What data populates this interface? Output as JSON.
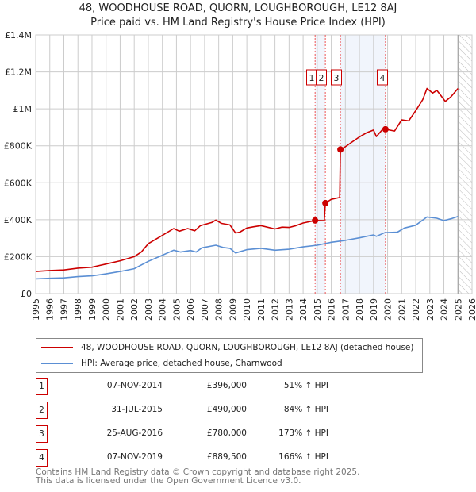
{
  "chart_data": {
    "type": "line",
    "title": "48, WOODHOUSE ROAD, QUORN, LOUGHBOROUGH, LE12 8AJ",
    "subtitle": "Price paid vs. HM Land Registry's House Price Index (HPI)",
    "xlim": [
      1995,
      2026
    ],
    "ylim": [
      0,
      1400000
    ],
    "grid": true,
    "y_ticks": [
      {
        "v": 0,
        "label": "£0"
      },
      {
        "v": 200000,
        "label": "£200K"
      },
      {
        "v": 400000,
        "label": "£400K"
      },
      {
        "v": 600000,
        "label": "£600K"
      },
      {
        "v": 800000,
        "label": "£800K"
      },
      {
        "v": 1000000,
        "label": "£1M"
      },
      {
        "v": 1200000,
        "label": "£1.2M"
      },
      {
        "v": 1400000,
        "label": "£1.4M"
      }
    ],
    "x_ticks": [
      "1995",
      "1996",
      "1997",
      "1998",
      "1999",
      "2000",
      "2001",
      "2002",
      "2003",
      "2004",
      "2005",
      "2006",
      "2007",
      "2008",
      "2009",
      "2010",
      "2011",
      "2012",
      "2013",
      "2014",
      "2015",
      "2016",
      "2017",
      "2018",
      "2019",
      "2020",
      "2021",
      "2022",
      "2023",
      "2024",
      "2025",
      "2026"
    ],
    "data_end": 2025.0,
    "series": [
      {
        "name": "48, WOODHOUSE ROAD, QUORN, LOUGHBOROUGH, LE12 8AJ (detached house)",
        "color": "#cc0000",
        "x": [
          1995,
          1996,
          1997,
          1998,
          1999,
          2000,
          2001,
          2002,
          2002.5,
          2003,
          2004,
          2004.8,
          2005.2,
          2005.8,
          2006.3,
          2006.7,
          2007.5,
          2007.8,
          2008.2,
          2008.8,
          2009.2,
          2009.5,
          2010,
          2010.5,
          2011,
          2012,
          2012.5,
          2013,
          2013.5,
          2014,
          2014.85,
          2015.5,
          2015.58,
          2016,
          2016.6,
          2016.65,
          2017,
          2017.5,
          2018,
          2018.5,
          2019,
          2019.2,
          2019.6,
          2019.85,
          2020.5,
          2021,
          2021.5,
          2022,
          2022.5,
          2022.8,
          2023.2,
          2023.5,
          2023.8,
          2024.1,
          2024.5,
          2025
        ],
        "y": [
          120000,
          125000,
          128000,
          138000,
          143000,
          160000,
          178000,
          200000,
          225000,
          270000,
          315000,
          352000,
          338000,
          352000,
          340000,
          368000,
          385000,
          398000,
          380000,
          372000,
          328000,
          333000,
          355000,
          362000,
          368000,
          350000,
          360000,
          358000,
          368000,
          382000,
          396000,
          395000,
          490000,
          510000,
          520000,
          780000,
          795000,
          822000,
          848000,
          870000,
          885000,
          850000,
          885000,
          889500,
          880000,
          940000,
          935000,
          990000,
          1050000,
          1110000,
          1085000,
          1100000,
          1070000,
          1040000,
          1065000,
          1110000
        ]
      },
      {
        "name": "HPI: Average price, detached house, Charnwood",
        "color": "#5b8fd4",
        "x": [
          1995,
          1996,
          1997,
          1998,
          1999,
          2000,
          2001,
          2002,
          2003,
          2004,
          2004.8,
          2005.3,
          2006,
          2006.4,
          2006.8,
          2007.8,
          2008.3,
          2008.8,
          2009.2,
          2010,
          2011,
          2012,
          2013,
          2014,
          2015,
          2016,
          2017,
          2018,
          2019,
          2019.2,
          2019.8,
          2020.7,
          2021.2,
          2022,
          2022.8,
          2023.5,
          2024,
          2024.5,
          2025
        ],
        "y": [
          80000,
          83000,
          85000,
          92000,
          96000,
          107000,
          120000,
          135000,
          175000,
          208000,
          235000,
          225000,
          233000,
          225000,
          248000,
          262000,
          250000,
          245000,
          220000,
          238000,
          245000,
          235000,
          240000,
          253000,
          262000,
          278000,
          288000,
          302000,
          318000,
          310000,
          330000,
          333000,
          355000,
          370000,
          415000,
          408000,
          395000,
          405000,
          418000
        ]
      }
    ],
    "sales": [
      {
        "label": "1",
        "x": 2014.85,
        "date": "07-NOV-2014",
        "price": 396000,
        "price_label": "£396,000",
        "hpi": "51% ↑ HPI"
      },
      {
        "label": "2",
        "x": 2015.58,
        "date": "31-JUL-2015",
        "price": 490000,
        "price_label": "£490,000",
        "hpi": "84% ↑ HPI"
      },
      {
        "label": "3",
        "x": 2016.65,
        "date": "25-AUG-2016",
        "price": 780000,
        "price_label": "£780,000",
        "hpi": "173% ↑ HPI"
      },
      {
        "label": "4",
        "x": 2019.85,
        "date": "07-NOV-2019",
        "price": 889500,
        "price_label": "£889,500",
        "hpi": "166% ↑ HPI"
      }
    ]
  },
  "footer": {
    "line1": "Contains HM Land Registry data © Crown copyright and database right 2025.",
    "line2": "This data is licensed under the Open Government Licence v3.0."
  }
}
